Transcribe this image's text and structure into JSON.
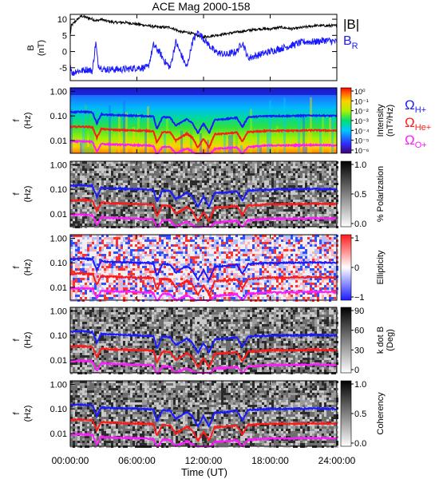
{
  "title": "ACE Mag 2000-158",
  "xaxis": {
    "label": "Time (UT)",
    "ticks": [
      "00:00:00",
      "06:00:00",
      "12:00:00",
      "18:00:00",
      "24:00:00"
    ],
    "tick_hours": [
      0,
      6,
      12,
      18,
      24
    ],
    "range_hours": [
      0,
      24
    ]
  },
  "colors": {
    "btotal": "#000000",
    "br": "#1a1aff",
    "h_plus": "#1a1aff",
    "he_plus": "#ff1a1a",
    "o_plus": "#ff1aff"
  },
  "chart_data": [
    {
      "type": "line",
      "panel": "B field",
      "ylabel": "B",
      "yunit": "(nT)",
      "ylim": [
        -9,
        11.5
      ],
      "yticks": [
        -5,
        0,
        5,
        10
      ],
      "yticklabels": [
        "-5",
        "0",
        "5",
        "10"
      ],
      "legend": [
        "|B|",
        "B",
        "R"
      ],
      "series": [
        {
          "name": "|B|",
          "color": "#000000",
          "x": [
            0,
            0.1,
            0.5,
            1.0,
            1.5,
            2.0,
            2.4,
            2.8,
            3.2,
            4.0,
            5.0,
            6.0,
            7.0,
            8.0,
            9.0,
            10.0,
            10.5,
            11.0,
            11.5,
            12.0,
            13.0,
            14.0,
            15.0,
            16.0,
            17.0,
            18.0,
            19.0,
            20.0,
            21.0,
            22.0,
            23.0,
            24.0
          ],
          "y": [
            5,
            8,
            9.5,
            11,
            10.5,
            10,
            9.5,
            10,
            9.5,
            9,
            9,
            8.5,
            8,
            7.5,
            7.5,
            6,
            6,
            5.5,
            5,
            4.5,
            5,
            5.5,
            6,
            6.5,
            7,
            7,
            7.5,
            7,
            7.5,
            8,
            8,
            8
          ]
        },
        {
          "name": "B_R",
          "color": "#1a1aff",
          "x": [
            0,
            0.2,
            0.5,
            1.0,
            1.5,
            2.0,
            2.3,
            2.5,
            2.8,
            3.0,
            3.5,
            4.0,
            5.0,
            6.0,
            7.0,
            7.5,
            8.0,
            8.5,
            9.0,
            9.5,
            10.0,
            10.5,
            11.0,
            11.5,
            12.0,
            12.5,
            13.0,
            14.0,
            15.0,
            15.5,
            16.0,
            17.0,
            18.0,
            19.0,
            20.0,
            21.0,
            22.0,
            23.0,
            24.0
          ],
          "y": [
            -4,
            -7,
            -6,
            -6,
            -5.5,
            -6,
            3,
            -4,
            -5,
            -5.5,
            -5.5,
            -5.5,
            -5.5,
            -5,
            -5,
            2,
            0,
            -3,
            -5,
            3,
            -1,
            -5,
            3,
            6,
            4,
            2,
            0,
            -1,
            0,
            3,
            -2,
            -1,
            0,
            1,
            2,
            3,
            3,
            3.5,
            3
          ]
        }
      ]
    },
    {
      "type": "heatmap",
      "panel": "Intensity",
      "ylabel": "f",
      "yunit": "(Hz)",
      "yscale": "log",
      "ylim": [
        0.003,
        1.4
      ],
      "yticks": [
        1.0,
        0.1,
        0.01
      ],
      "yticklabels": [
        "1.00",
        "0.10",
        "0.01"
      ],
      "colorbar": {
        "label": "Intensity",
        "unit": "(nT²/Hz)",
        "scale": "rainbow",
        "ticks": [
          "10⁰",
          "10⁻¹",
          "10⁻²",
          "10⁻³",
          "10⁻⁴",
          "10⁻⁵",
          "10⁻⁶"
        ]
      }
    },
    {
      "type": "heatmap",
      "panel": "Polarization",
      "ylabel": "f",
      "yunit": "(Hz)",
      "yscale": "log",
      "ylim": [
        0.003,
        1.4
      ],
      "yticks": [
        1.0,
        0.1,
        0.01
      ],
      "yticklabels": [
        "1.00",
        "0.10",
        "0.01"
      ],
      "colorbar": {
        "label": "% Polarization",
        "unit": "",
        "scale": "gray",
        "ticks": [
          "1.0",
          "0.5",
          "0.0"
        ]
      }
    },
    {
      "type": "heatmap",
      "panel": "Ellipticity",
      "ylabel": "f",
      "yunit": "(Hz)",
      "yscale": "log",
      "ylim": [
        0.003,
        1.4
      ],
      "yticks": [
        1.0,
        0.1,
        0.01
      ],
      "yticklabels": [
        "1.00",
        "0.10",
        "0.01"
      ],
      "colorbar": {
        "label": "Ellipticity",
        "unit": "",
        "scale": "bwr",
        "ticks": [
          "1",
          "0",
          "−1"
        ]
      }
    },
    {
      "type": "heatmap",
      "panel": "k dot B",
      "ylabel": "f",
      "yunit": "(Hz)",
      "yscale": "log",
      "ylim": [
        0.003,
        1.4
      ],
      "yticks": [
        1.0,
        0.1,
        0.01
      ],
      "yticklabels": [
        "1.00",
        "0.10",
        "0.01"
      ],
      "colorbar": {
        "label": "k dot B",
        "unit": "(Deg)",
        "scale": "gray",
        "ticks": [
          "90",
          "60",
          "30",
          "0"
        ]
      }
    },
    {
      "type": "heatmap",
      "panel": "Coherency",
      "ylabel": "f",
      "yunit": "(Hz)",
      "yscale": "log",
      "ylim": [
        0.003,
        1.4
      ],
      "yticks": [
        1.0,
        0.1,
        0.01
      ],
      "yticklabels": [
        "1.00",
        "0.10",
        "0.01"
      ],
      "colorbar": {
        "label": "Coherency",
        "unit": "",
        "scale": "gray",
        "ticks": [
          "1.0",
          "0.5",
          "0.0"
        ]
      }
    }
  ],
  "gyrofrequency_lines": [
    {
      "name": "Ω",
      "sub": "H+",
      "color": "#1a1aff",
      "x": [
        0,
        1,
        2,
        2.4,
        2.8,
        3.2,
        5,
        6.5,
        7.5,
        7.8,
        8.3,
        9,
        9.5,
        10.5,
        11,
        11.5,
        12,
        12.5,
        13,
        14,
        15,
        15.5,
        16,
        18,
        20,
        22,
        24
      ],
      "y": [
        0.14,
        0.15,
        0.14,
        0.05,
        0.12,
        0.11,
        0.105,
        0.1,
        0.095,
        0.03,
        0.09,
        0.085,
        0.04,
        0.075,
        0.05,
        0.02,
        0.05,
        0.02,
        0.07,
        0.075,
        0.085,
        0.035,
        0.09,
        0.1,
        0.1,
        0.105,
        0.1
      ]
    },
    {
      "name": "Ω",
      "sub": "He+",
      "color": "#ff1a1a",
      "x": [
        0,
        1,
        2,
        2.4,
        2.8,
        3.2,
        5,
        6.5,
        7.5,
        7.8,
        8.3,
        9,
        9.5,
        10.5,
        11,
        11.5,
        12,
        12.5,
        13,
        14,
        15,
        15.5,
        16,
        18,
        20,
        22,
        24
      ],
      "y": [
        0.035,
        0.037,
        0.035,
        0.013,
        0.03,
        0.028,
        0.026,
        0.025,
        0.024,
        0.008,
        0.022,
        0.021,
        0.01,
        0.019,
        0.013,
        0.005,
        0.012,
        0.005,
        0.018,
        0.019,
        0.021,
        0.009,
        0.022,
        0.025,
        0.025,
        0.026,
        0.025
      ]
    },
    {
      "name": "Ω",
      "sub": "O+",
      "color": "#ff1aff",
      "x": [
        0,
        1,
        2,
        2.4,
        2.8,
        3.2,
        5,
        6.5,
        7.5,
        7.8,
        8.3,
        9,
        9.5,
        10.5,
        11,
        11.5,
        12,
        12.5,
        13,
        14,
        15,
        15.5,
        16,
        18,
        20,
        22,
        24
      ],
      "y": [
        0.009,
        0.0093,
        0.0088,
        0.0035,
        0.0075,
        0.007,
        0.0066,
        0.0063,
        0.006,
        0.0025,
        0.0055,
        0.0053,
        0.003,
        0.0048,
        0.0035,
        0.0025,
        0.003,
        0.0025,
        0.0045,
        0.0048,
        0.0053,
        0.0028,
        0.0055,
        0.0063,
        0.0063,
        0.0066,
        0.0063
      ]
    }
  ]
}
